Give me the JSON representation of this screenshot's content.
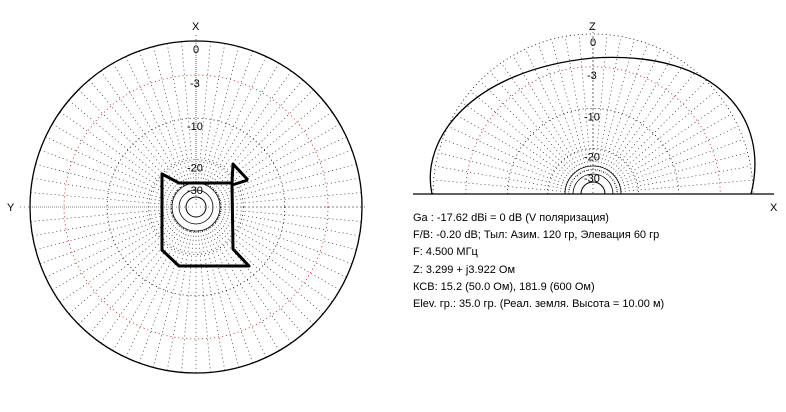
{
  "chart_data": [
    {
      "type": "polar",
      "plane": "azimuth",
      "axis_labels": {
        "top": "X",
        "left": "Y"
      },
      "ring_labels": [
        "0",
        "-3",
        "-10",
        "-20",
        "-30"
      ],
      "ring_db": [
        0,
        -3,
        -10,
        -20,
        -30
      ],
      "radial_step_deg": 5
    },
    {
      "type": "polar",
      "plane": "elevation",
      "axis_labels": {
        "top": "Z",
        "right": "X"
      },
      "ring_labels": [
        "0",
        "-3",
        "-10",
        "-20",
        "-30"
      ],
      "ring_db": [
        0,
        -3,
        -10,
        -20,
        -30
      ],
      "radial_step_deg": 5,
      "pattern_note": "vertical-plane pattern, max at 35.0 elevation"
    }
  ],
  "info": {
    "lines": [
      "Ga : -17.62 dBi = 0 dB  (V поляризация)",
      "F/B: -0.20 dB; Тыл: Азим. 120 гр, Элевация 60 гр",
      "F: 4.500 МГц",
      "Z: 3.299 + j3.922 Ом",
      "КСВ: 15.2 (50.0 Ом), 181.9 (600 Ом)",
      "Elev. гр.: 35.0 гр. (Реал. земля. Высота = 10.00 м)"
    ]
  },
  "colors": {
    "pattern": "#000000",
    "grid": "#000000",
    "dotted_ring": "#d00000",
    "antenna": "#000000"
  }
}
